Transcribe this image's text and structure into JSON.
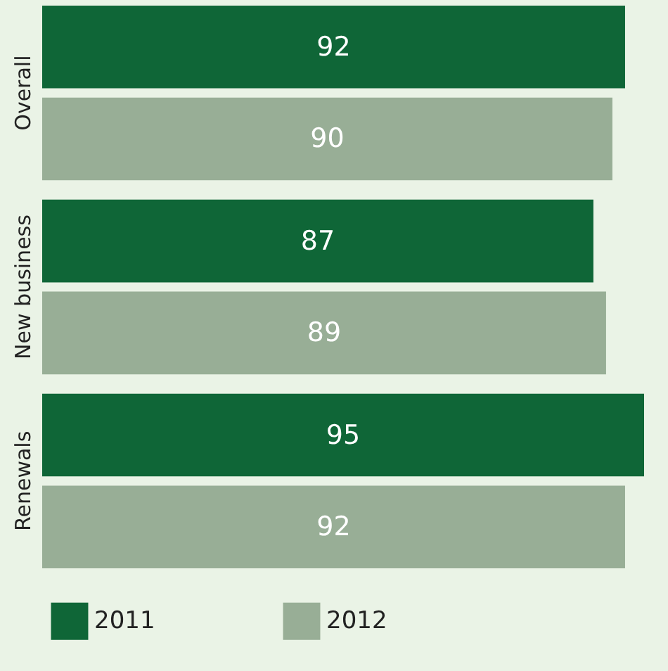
{
  "chart_data": {
    "type": "bar",
    "orientation": "horizontal",
    "categories": [
      "Overall",
      "New business",
      "Renewals"
    ],
    "series": [
      {
        "name": "2011",
        "color": "#0f6637",
        "values": [
          92,
          87,
          95
        ]
      },
      {
        "name": "2012",
        "color": "#98ae96",
        "values": [
          90,
          89,
          92
        ]
      }
    ],
    "data_labels": true,
    "legend": "bottom"
  }
}
